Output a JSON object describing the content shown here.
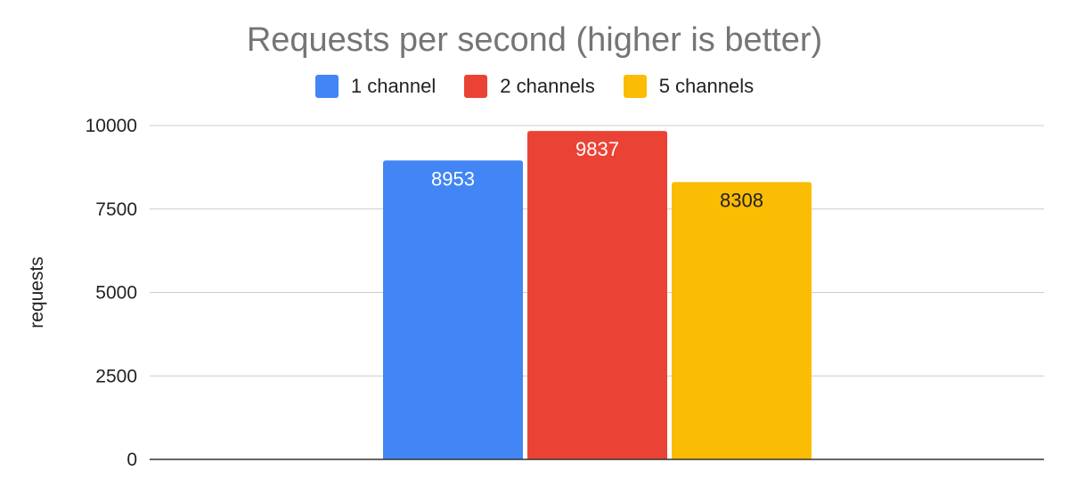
{
  "chart_data": {
    "type": "bar",
    "title": "Requests per second (higher is better)",
    "ylabel": "requests",
    "xlabel": "",
    "ylim": [
      0,
      10000
    ],
    "yticks": [
      0,
      2500,
      5000,
      7500,
      10000
    ],
    "grid": true,
    "legend_position": "top",
    "categories": [
      ""
    ],
    "series": [
      {
        "name": "1 channel",
        "values": [
          8953
        ],
        "color": "#4285f4",
        "label_color": "#ffffff",
        "label_text": "8953"
      },
      {
        "name": "2 channels",
        "values": [
          9837
        ],
        "color": "#ea4335",
        "label_color": "#ffffff",
        "label_text": "9837"
      },
      {
        "name": "5 channels",
        "values": [
          8308
        ],
        "color": "#fbbc04",
        "label_color": "#222222",
        "label_text": "8308"
      }
    ]
  }
}
